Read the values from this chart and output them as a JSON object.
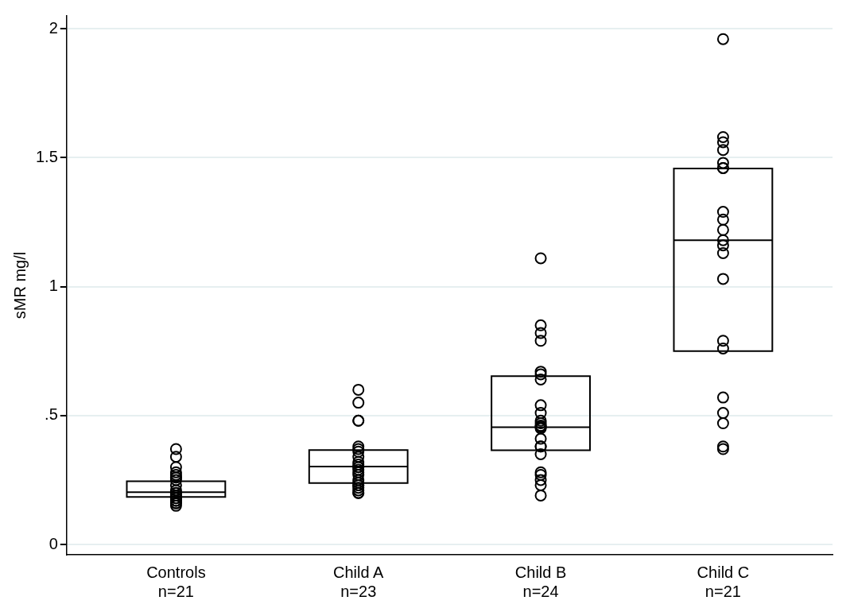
{
  "chart_data": {
    "type": "box",
    "ylabel": "sMR mg/l",
    "categories": [
      "Controls\nn=21",
      "Child A\nn=23",
      "Child B\nn=24",
      "Child C\nn=21"
    ],
    "boxes": [
      {
        "low": 0.184,
        "q1": 0.184,
        "median": 0.203,
        "q3": 0.245,
        "high": 0.245
      },
      {
        "low": 0.238,
        "q1": 0.238,
        "median": 0.302,
        "q3": 0.366,
        "high": 0.366
      },
      {
        "low": 0.365,
        "q1": 0.365,
        "median": 0.455,
        "q3": 0.653,
        "high": 0.653
      },
      {
        "low": 0.75,
        "q1": 0.75,
        "median": 1.18,
        "q3": 1.458,
        "high": 1.458
      }
    ],
    "series": [
      {
        "type": "scatter",
        "color": "#000000",
        "x": [
          "Controls\nn=21",
          "Controls\nn=21",
          "Controls\nn=21",
          "Controls\nn=21",
          "Controls\nn=21",
          "Controls\nn=21",
          "Controls\nn=21",
          "Controls\nn=21",
          "Controls\nn=21",
          "Controls\nn=21",
          "Controls\nn=21",
          "Controls\nn=21",
          "Controls\nn=21",
          "Controls\nn=21",
          "Controls\nn=21",
          "Controls\nn=21",
          "Controls\nn=21",
          "Controls\nn=21",
          "Controls\nn=21",
          "Controls\nn=21",
          "Controls\nn=21",
          "Child A\nn=23",
          "Child A\nn=23",
          "Child A\nn=23",
          "Child A\nn=23",
          "Child A\nn=23",
          "Child A\nn=23",
          "Child A\nn=23",
          "Child A\nn=23",
          "Child A\nn=23",
          "Child A\nn=23",
          "Child A\nn=23",
          "Child A\nn=23",
          "Child A\nn=23",
          "Child A\nn=23",
          "Child A\nn=23",
          "Child A\nn=23",
          "Child A\nn=23",
          "Child A\nn=23",
          "Child A\nn=23",
          "Child A\nn=23",
          "Child A\nn=23",
          "Child A\nn=23",
          "Child A\nn=23",
          "Child B\nn=24",
          "Child B\nn=24",
          "Child B\nn=24",
          "Child B\nn=24",
          "Child B\nn=24",
          "Child B\nn=24",
          "Child B\nn=24",
          "Child B\nn=24",
          "Child B\nn=24",
          "Child B\nn=24",
          "Child B\nn=24",
          "Child B\nn=24",
          "Child B\nn=24",
          "Child B\nn=24",
          "Child B\nn=24",
          "Child B\nn=24",
          "Child B\nn=24",
          "Child B\nn=24",
          "Child B\nn=24",
          "Child B\nn=24",
          "Child B\nn=24",
          "Child B\nn=24",
          "Child B\nn=24",
          "Child B\nn=24",
          "Child C\nn=21",
          "Child C\nn=21",
          "Child C\nn=21",
          "Child C\nn=21",
          "Child C\nn=21",
          "Child C\nn=21",
          "Child C\nn=21",
          "Child C\nn=21",
          "Child C\nn=21",
          "Child C\nn=21",
          "Child C\nn=21",
          "Child C\nn=21",
          "Child C\nn=21",
          "Child C\nn=21",
          "Child C\nn=21",
          "Child C\nn=21",
          "Child C\nn=21",
          "Child C\nn=21",
          "Child C\nn=21",
          "Child C\nn=21",
          "Child C\nn=21"
        ],
        "values": [
          0.37,
          0.34,
          0.3,
          0.28,
          0.27,
          0.26,
          0.26,
          0.25,
          0.23,
          0.21,
          0.2,
          0.2,
          0.19,
          0.19,
          0.18,
          0.18,
          0.17,
          0.17,
          0.16,
          0.16,
          0.15,
          0.6,
          0.55,
          0.48,
          0.48,
          0.38,
          0.37,
          0.36,
          0.34,
          0.32,
          0.31,
          0.3,
          0.3,
          0.29,
          0.28,
          0.27,
          0.25,
          0.24,
          0.23,
          0.23,
          0.22,
          0.21,
          0.2,
          0.2,
          1.11,
          0.85,
          0.82,
          0.79,
          0.67,
          0.66,
          0.64,
          0.54,
          0.51,
          0.48,
          0.47,
          0.46,
          0.46,
          0.455,
          0.45,
          0.41,
          0.38,
          0.38,
          0.35,
          0.28,
          0.27,
          0.25,
          0.23,
          0.19,
          1.96,
          1.58,
          1.56,
          1.53,
          1.48,
          1.46,
          1.46,
          1.29,
          1.26,
          1.22,
          1.18,
          1.16,
          1.13,
          1.03,
          0.79,
          0.76,
          0.57,
          0.51,
          0.47,
          0.38,
          0.37
        ]
      }
    ],
    "ylim": [
      -0.04,
      2.05
    ],
    "yticks": [
      0,
      {
        "value": 0.5,
        "label": ".5"
      },
      1,
      1.5,
      2
    ],
    "grid": "y",
    "marker": "circle"
  }
}
